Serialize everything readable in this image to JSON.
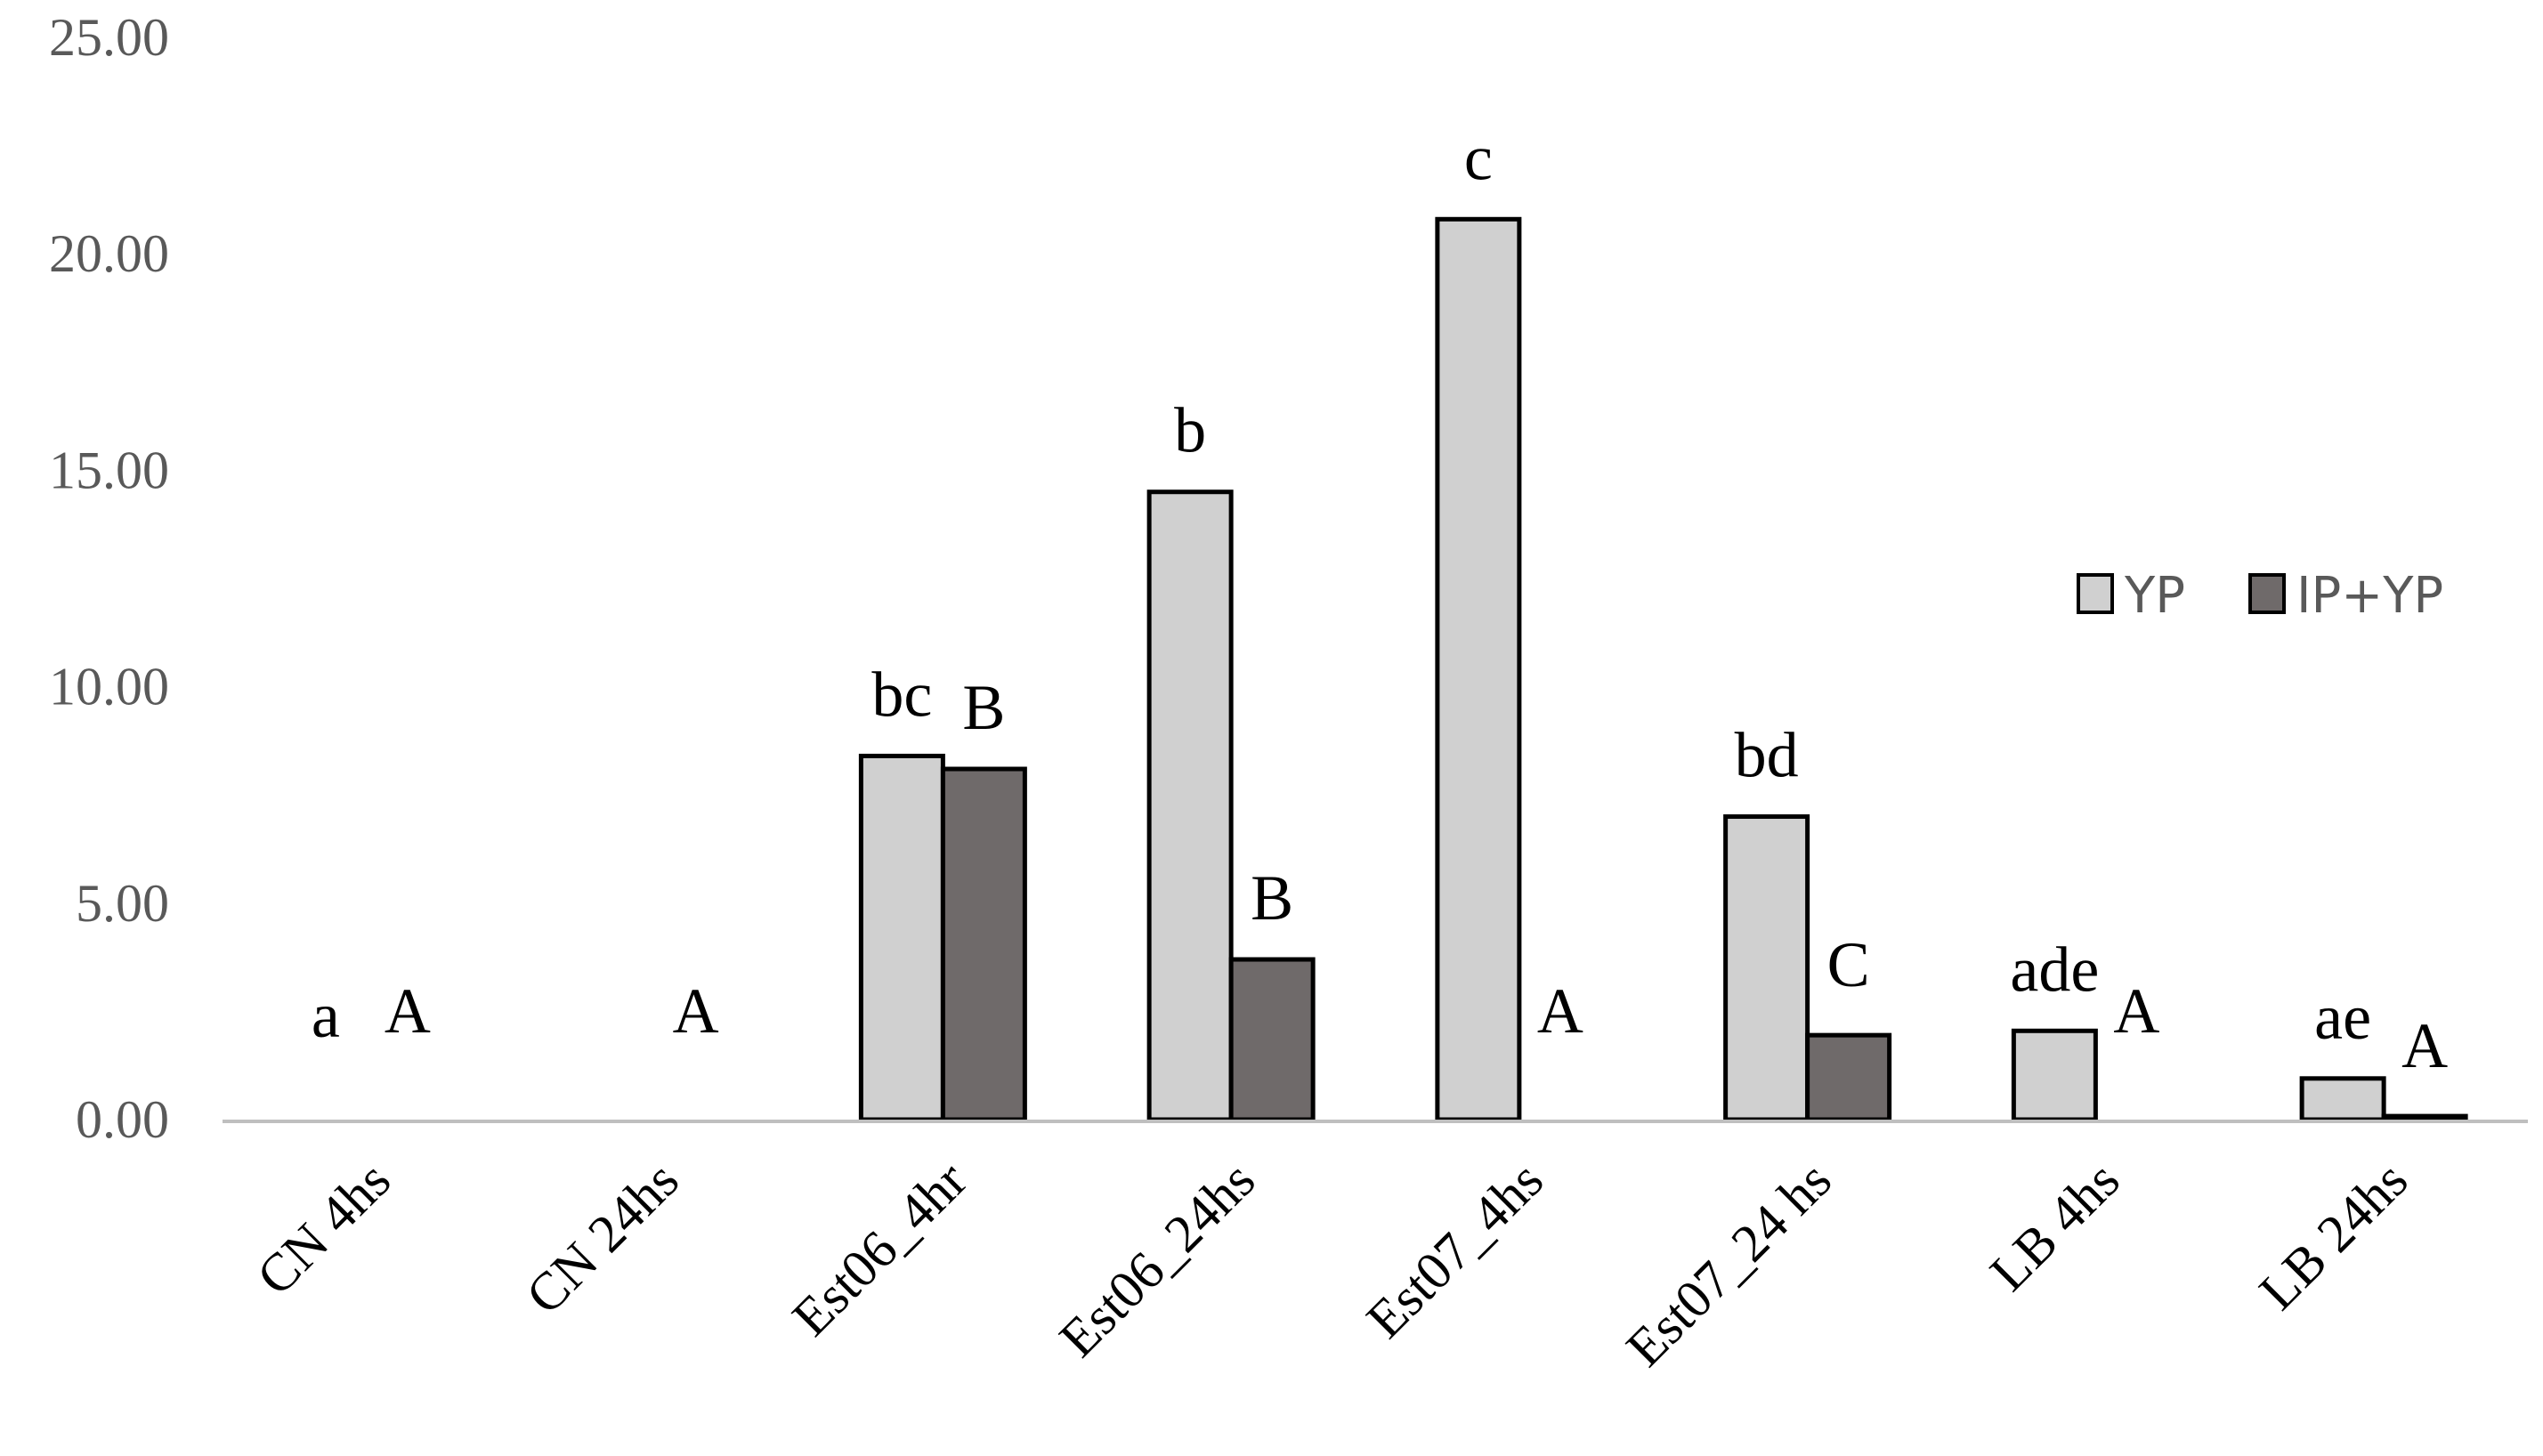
{
  "chart_data": {
    "type": "bar",
    "title": "",
    "xlabel": "",
    "ylabel": "",
    "ylim": [
      0,
      25
    ],
    "yticks": [
      "0.00",
      "5.00",
      "10.00",
      "15.00",
      "20.00",
      "25.00"
    ],
    "grid": false,
    "legend_position": "right",
    "categories": [
      "CN 4hs",
      "CN 24hs",
      "Est06_4hr",
      "Est06_24hs",
      "Est07_4hs",
      "Est07_24 hs",
      "LB 4hs",
      "LB 24hs"
    ],
    "series": [
      {
        "name": "YP",
        "color": "#d0d0d0",
        "values": [
          0,
          0,
          8.4,
          14.5,
          20.8,
          7.0,
          2.05,
          0.95
        ],
        "annotations": [
          "a",
          "",
          "bc",
          "b",
          "c",
          "bd",
          "ade",
          "ae"
        ]
      },
      {
        "name": "IP+YP",
        "color": "#6f6a6a",
        "values": [
          0,
          0,
          8.1,
          3.7,
          0,
          1.95,
          0,
          0.08
        ],
        "annotations": [
          "A",
          "A",
          "B",
          "B",
          "A",
          "C",
          "A",
          "A"
        ]
      }
    ]
  }
}
